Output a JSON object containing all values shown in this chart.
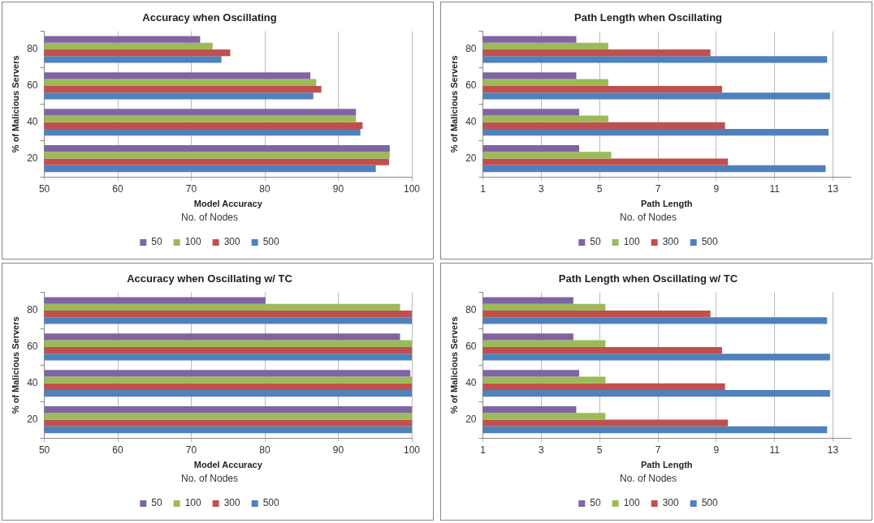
{
  "chart_data": [
    {
      "type": "bar",
      "orientation": "horizontal",
      "title": "Accuracy when Oscillating",
      "xlabel": "Model Accuracy",
      "ylabel": "% of Malicious Servers",
      "legend_title": "No. of Nodes",
      "legend": "bottom",
      "grid": "x",
      "categories": [
        "80",
        "60",
        "40",
        "20"
      ],
      "xlim": [
        50,
        100
      ],
      "xticks": [
        50,
        60,
        70,
        80,
        90,
        100
      ],
      "series": [
        {
          "name": "50",
          "color": "#8064a2",
          "values": [
            71.2,
            86.2,
            92.4,
            97.0
          ]
        },
        {
          "name": "100",
          "color": "#9bbb59",
          "values": [
            72.9,
            87.0,
            92.4,
            97.0
          ]
        },
        {
          "name": "300",
          "color": "#c0504d",
          "values": [
            75.3,
            87.7,
            93.3,
            96.9
          ]
        },
        {
          "name": "500",
          "color": "#4f81bd",
          "values": [
            74.1,
            86.6,
            93.0,
            95.1
          ]
        }
      ]
    },
    {
      "type": "bar",
      "orientation": "horizontal",
      "title": "Path Length when Oscillating",
      "xlabel": "Path Length",
      "ylabel": "% of Malicious Servers",
      "legend_title": "No. of Nodes",
      "legend": "bottom",
      "grid": "x",
      "categories": [
        "80",
        "60",
        "40",
        "20"
      ],
      "xlim": [
        1,
        13.6
      ],
      "xticks": [
        1,
        3,
        5,
        7,
        9,
        11,
        13
      ],
      "series": [
        {
          "name": "50",
          "color": "#8064a2",
          "values": [
            4.2,
            4.2,
            4.3,
            4.3
          ]
        },
        {
          "name": "100",
          "color": "#9bbb59",
          "values": [
            5.3,
            5.3,
            5.3,
            5.4
          ]
        },
        {
          "name": "300",
          "color": "#c0504d",
          "values": [
            8.8,
            9.2,
            9.3,
            9.4
          ]
        },
        {
          "name": "500",
          "color": "#4f81bd",
          "values": [
            12.8,
            12.9,
            12.85,
            12.75
          ]
        }
      ]
    },
    {
      "type": "bar",
      "orientation": "horizontal",
      "title": "Accuracy when Oscillating w/ TC",
      "xlabel": "Model Accuracy",
      "ylabel": "% of Malicious Servers",
      "legend_title": "No. of Nodes",
      "legend": "bottom",
      "grid": "x",
      "categories": [
        "80",
        "60",
        "40",
        "20"
      ],
      "xlim": [
        50,
        100
      ],
      "xticks": [
        50,
        60,
        70,
        80,
        90,
        100
      ],
      "series": [
        {
          "name": "50",
          "color": "#8064a2",
          "values": [
            80.1,
            98.4,
            99.8,
            100
          ]
        },
        {
          "name": "100",
          "color": "#9bbb59",
          "values": [
            98.4,
            100,
            100,
            100
          ]
        },
        {
          "name": "300",
          "color": "#c0504d",
          "values": [
            100,
            100,
            100,
            100
          ]
        },
        {
          "name": "500",
          "color": "#4f81bd",
          "values": [
            100,
            100,
            100,
            100
          ]
        }
      ]
    },
    {
      "type": "bar",
      "orientation": "horizontal",
      "title": "Path Length when Oscillating w/ TC",
      "xlabel": "Path Length",
      "ylabel": "% of Malicious Servers",
      "legend_title": "No. of Nodes",
      "legend": "bottom",
      "grid": "x",
      "categories": [
        "80",
        "60",
        "40",
        "20"
      ],
      "xlim": [
        1,
        13.6
      ],
      "xticks": [
        1,
        3,
        5,
        7,
        9,
        11,
        13
      ],
      "series": [
        {
          "name": "50",
          "color": "#8064a2",
          "values": [
            4.1,
            4.1,
            4.3,
            4.2
          ]
        },
        {
          "name": "100",
          "color": "#9bbb59",
          "values": [
            5.2,
            5.2,
            5.2,
            5.2
          ]
        },
        {
          "name": "300",
          "color": "#c0504d",
          "values": [
            8.8,
            9.2,
            9.3,
            9.4
          ]
        },
        {
          "name": "500",
          "color": "#4f81bd",
          "values": [
            12.8,
            12.9,
            12.9,
            12.8
          ]
        }
      ]
    }
  ]
}
